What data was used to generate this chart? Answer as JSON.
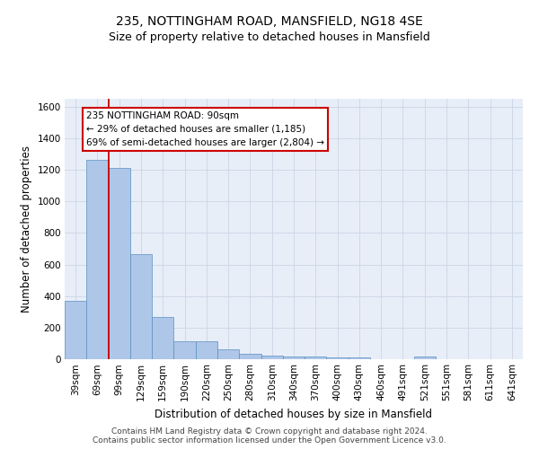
{
  "title_line1": "235, NOTTINGHAM ROAD, MANSFIELD, NG18 4SE",
  "title_line2": "Size of property relative to detached houses in Mansfield",
  "xlabel": "Distribution of detached houses by size in Mansfield",
  "ylabel": "Number of detached properties",
  "categories": [
    "39sqm",
    "69sqm",
    "99sqm",
    "129sqm",
    "159sqm",
    "190sqm",
    "220sqm",
    "250sqm",
    "280sqm",
    "310sqm",
    "340sqm",
    "370sqm",
    "400sqm",
    "430sqm",
    "460sqm",
    "491sqm",
    "521sqm",
    "551sqm",
    "581sqm",
    "611sqm",
    "641sqm"
  ],
  "values": [
    370,
    1265,
    1210,
    665,
    265,
    115,
    115,
    65,
    35,
    20,
    18,
    18,
    10,
    10,
    0,
    0,
    18,
    0,
    0,
    0,
    0
  ],
  "bar_color": "#aec6e8",
  "bar_edge_color": "#5a8fc0",
  "vline_x": 1.5,
  "annotation_text": "235 NOTTINGHAM ROAD: 90sqm\n← 29% of detached houses are smaller (1,185)\n69% of semi-detached houses are larger (2,804) →",
  "annotation_box_color": "#ffffff",
  "annotation_box_edge_color": "#cc0000",
  "ylim": [
    0,
    1650
  ],
  "yticks": [
    0,
    200,
    400,
    600,
    800,
    1000,
    1200,
    1400,
    1600
  ],
  "grid_color": "#d0d8e8",
  "background_color": "#e8eef8",
  "footer_text": "Contains HM Land Registry data © Crown copyright and database right 2024.\nContains public sector information licensed under the Open Government Licence v3.0.",
  "title_fontsize": 10,
  "subtitle_fontsize": 9,
  "tick_fontsize": 7.5,
  "ylabel_fontsize": 8.5,
  "xlabel_fontsize": 8.5,
  "annotation_fontsize": 7.5
}
